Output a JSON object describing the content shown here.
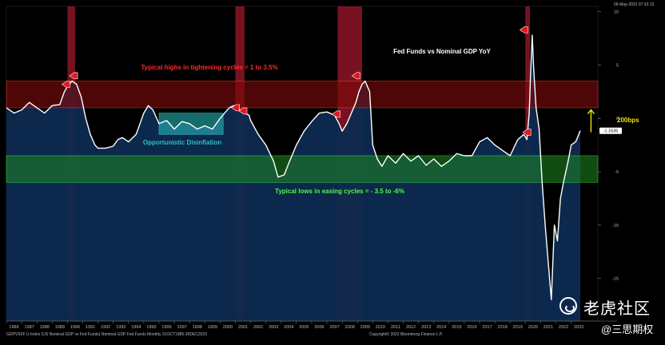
{
  "chart_data": {
    "type": "area",
    "title": "Fed Funds vs Nominal GDP YoY",
    "ylim": [
      -19,
      10.5
    ],
    "y_ticks": [
      10,
      5,
      0,
      -5,
      -10,
      -15
    ],
    "y_tick_labels": [
      "10",
      "5",
      "0",
      "-5",
      "-10",
      "-15"
    ],
    "last_value_label": "-1.1635",
    "x_tick_labels": [
      "1986",
      "1987",
      "1988",
      "1989",
      "1990",
      "1991",
      "1992",
      "1993",
      "1994",
      "1995",
      "1996",
      "1997",
      "1998",
      "1999",
      "2000",
      "2001",
      "2002",
      "2003",
      "2004",
      "2005",
      "2006",
      "2007",
      "2008",
      "2009",
      "2010",
      "2011",
      "2012",
      "2013",
      "2014",
      "2015",
      "2016",
      "2017",
      "2018",
      "2019",
      "2020",
      "2021",
      "2022",
      "2023"
    ],
    "series": [
      {
        "x": [
          1986.0,
          1986.5,
          1987.0,
          1987.5,
          1988.0,
          1988.5,
          1989.0,
          1989.5,
          1989.8,
          1990.0,
          1990.3,
          1990.6,
          1990.9,
          1991.2,
          1991.5,
          1991.8,
          1992.0,
          1992.5,
          1993.0,
          1993.3,
          1993.6,
          1994.0,
          1994.5,
          1995.0,
          1995.3,
          1995.6,
          1996.0,
          1996.5,
          1997.0,
          1997.5,
          1998.0,
          1998.5,
          1999.0,
          1999.5,
          2000.0,
          2000.3,
          2000.6,
          2000.9,
          2001.0,
          2001.3,
          2001.6,
          2001.9,
          2002.0,
          2002.5,
          2003.0,
          2003.5,
          2003.8,
          2004.2,
          2004.5,
          2005.0,
          2005.5,
          2006.0,
          2006.5,
          2007.0,
          2007.5,
          2007.8,
          2008.0,
          2008.3,
          2008.6,
          2008.9,
          2009.1,
          2009.3,
          2009.5,
          2009.8,
          2010.0,
          2010.3,
          2010.6,
          2011.0,
          2011.5,
          2012.0,
          2012.5,
          2013.0,
          2013.5,
          2014.0,
          2014.5,
          2015.0,
          2015.5,
          2016.0,
          2016.5,
          2017.0,
          2017.5,
          2018.0,
          2018.5,
          2019.0,
          2019.5,
          2019.9,
          2020.1,
          2020.25,
          2020.35,
          2020.45,
          2020.55,
          2020.7,
          2020.9,
          2021.1,
          2021.3,
          2021.5,
          2021.7,
          2021.9,
          2022.1,
          2022.3,
          2022.5,
          2022.8,
          2023.0,
          2023.3,
          2023.6
        ],
        "y": [
          1.0,
          0.5,
          0.8,
          1.5,
          1.0,
          0.5,
          1.2,
          1.3,
          2.5,
          3.0,
          3.5,
          3.2,
          2.0,
          0.0,
          -1.5,
          -2.5,
          -2.8,
          -2.8,
          -2.6,
          -2.0,
          -1.8,
          -2.2,
          -1.5,
          0.5,
          1.2,
          0.8,
          -0.5,
          -0.2,
          -1.0,
          -0.3,
          -0.5,
          -1.0,
          -0.7,
          -1.0,
          0.0,
          0.5,
          1.0,
          1.2,
          1.0,
          0.8,
          0.5,
          0.3,
          -0.2,
          -1.5,
          -2.5,
          -4.0,
          -5.5,
          -5.3,
          -4.2,
          -2.5,
          -1.2,
          -0.3,
          0.5,
          0.6,
          0.3,
          -0.5,
          -1.2,
          -0.5,
          0.5,
          1.5,
          2.5,
          3.2,
          3.5,
          2.5,
          -2.5,
          -3.8,
          -4.5,
          -3.5,
          -4.2,
          -3.3,
          -4.0,
          -3.5,
          -4.4,
          -3.8,
          -4.5,
          -4.0,
          -3.3,
          -3.5,
          -3.5,
          -2.2,
          -1.8,
          -2.5,
          -3.0,
          -3.5,
          -2.0,
          -1.5,
          -2.0,
          0.5,
          4.5,
          7.8,
          4.5,
          1.0,
          -1.0,
          -6.0,
          -10.0,
          -13.5,
          -17.0,
          -10.0,
          -11.5,
          -7.5,
          -6.0,
          -4.0,
          -2.5,
          -2.2,
          -1.16
        ]
      }
    ],
    "recession_periods": [
      [
        1990.0,
        1990.5
      ],
      [
        2001.0,
        2001.6
      ],
      [
        2007.7,
        2009.3
      ],
      [
        2020.0,
        2020.3
      ]
    ],
    "bands": {
      "tightening": {
        "from": 1.0,
        "to": 3.5,
        "label": "Typical highs in tightening cycles = 1 to 3.5%"
      },
      "easing": {
        "from": -3.5,
        "to": -6.0,
        "label": "Typical lows in easing cycles = - 3.5 to -6%"
      }
    },
    "annotations": {
      "disinflation_label": "Opportunistic Disinflation",
      "disinflation_box": {
        "x": [
          1996.0,
          2000.2
        ],
        "y": [
          -1.5,
          0.5
        ]
      },
      "arrow_label": "200bps",
      "arrow_x": 2024.3,
      "arrow_y": [
        -1.3,
        0.8
      ],
      "markers": [
        {
          "x": 1989.9,
          "y": 3.2
        },
        {
          "x": 1990.4,
          "y": 4.0
        },
        {
          "x": 2001.0,
          "y": 1.0
        },
        {
          "x": 2001.5,
          "y": 0.7
        },
        {
          "x": 2007.6,
          "y": 0.4
        },
        {
          "x": 2008.9,
          "y": 4.0
        },
        {
          "x": 2019.9,
          "y": 8.3
        },
        {
          "x": 2020.1,
          "y": -1.3
        }
      ]
    },
    "colors": {
      "line": "#ffffff",
      "area": "#0d2a50",
      "recession": "#a0182c",
      "tight_band": "#7a0a0a",
      "ease_band": "#1f8a24",
      "tight_label": "#ff2a2a",
      "ease_label": "#4dff3a",
      "disinflation": "#28c4c4",
      "arrow": "#f2e400",
      "marker": "#e8141e"
    }
  },
  "footer": {
    "left": "GDPVSFF U Index (US Nominal GDP vs Fed Funds) Nominal GDP Fed Funds  Monthly 31OCT1985-30DEC2023",
    "copyright": "Copyright© 2022 Bloomberg Finance L.P.",
    "date": "06-May-2022 07:32:13"
  },
  "watermark": {
    "line1": "老虎社区",
    "line2": "@三思期权"
  }
}
